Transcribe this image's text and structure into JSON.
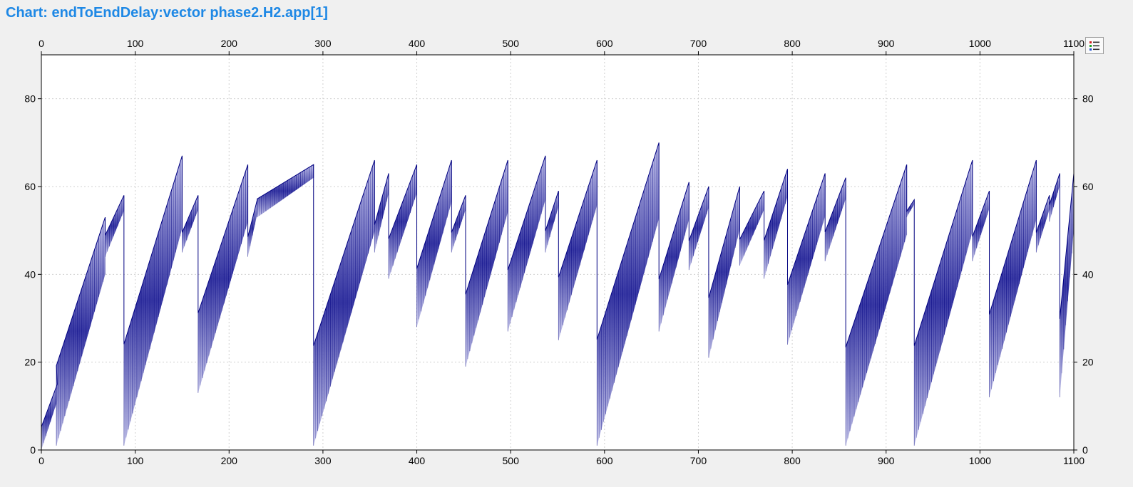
{
  "title": "Chart: endToEndDelay:vector phase2.H2.app[1]",
  "legend_button": {
    "icon": "legend-list-icon"
  },
  "colors": {
    "series": "#000080",
    "fill_light": "#e8e8f6",
    "grid": "#d0d0d0",
    "background": "#f0f0f0",
    "plot_background": "#ffffff",
    "title": "#1e88e5"
  },
  "chart_data": {
    "type": "line",
    "title": "Chart: endToEndDelay:vector phase2.H2.app[1]",
    "xlabel": "",
    "ylabel": "",
    "xlim": [
      0,
      1100
    ],
    "ylim": [
      0,
      90
    ],
    "x_ticks": [
      "0",
      "100",
      "200",
      "300",
      "400",
      "500",
      "600",
      "700",
      "800",
      "900",
      "1000",
      "1100"
    ],
    "y_ticks": [
      "0",
      "20",
      "40",
      "60",
      "80"
    ],
    "grid": true,
    "axes_mirrored": "top-and-right",
    "legend": "hidden",
    "series": [
      {
        "segments": [
          {
            "x_start": 0,
            "x_end": 17,
            "y_min": 0,
            "y_max": 15
          },
          {
            "x_start": 16,
            "x_end": 68,
            "y_min": 1,
            "y_max": 53
          },
          {
            "x_start": 68,
            "x_end": 88,
            "y_min": 44,
            "y_max": 58
          },
          {
            "x_start": 88,
            "x_end": 150,
            "y_min": 1,
            "y_max": 67
          },
          {
            "x_start": 150,
            "x_end": 167,
            "y_min": 45,
            "y_max": 58
          },
          {
            "x_start": 167,
            "x_end": 220,
            "y_min": 13,
            "y_max": 65
          },
          {
            "x_start": 220,
            "x_end": 230,
            "y_min": 44,
            "y_max": 57
          },
          {
            "x_start": 230,
            "x_end": 290,
            "y_min": 53,
            "y_max": 65
          },
          {
            "x_start": 290,
            "x_end": 355,
            "y_min": 1,
            "y_max": 66
          },
          {
            "x_start": 355,
            "x_end": 370,
            "y_min": 45,
            "y_max": 63
          },
          {
            "x_start": 370,
            "x_end": 400,
            "y_min": 39,
            "y_max": 65
          },
          {
            "x_start": 400,
            "x_end": 437,
            "y_min": 28,
            "y_max": 66
          },
          {
            "x_start": 437,
            "x_end": 452,
            "y_min": 45,
            "y_max": 58
          },
          {
            "x_start": 452,
            "x_end": 497,
            "y_min": 19,
            "y_max": 66
          },
          {
            "x_start": 497,
            "x_end": 537,
            "y_min": 27,
            "y_max": 67
          },
          {
            "x_start": 537,
            "x_end": 551,
            "y_min": 45,
            "y_max": 59
          },
          {
            "x_start": 551,
            "x_end": 592,
            "y_min": 25,
            "y_max": 66
          },
          {
            "x_start": 592,
            "x_end": 658,
            "y_min": 1,
            "y_max": 70
          },
          {
            "x_start": 658,
            "x_end": 690,
            "y_min": 27,
            "y_max": 61
          },
          {
            "x_start": 690,
            "x_end": 711,
            "y_min": 41,
            "y_max": 60
          },
          {
            "x_start": 711,
            "x_end": 744,
            "y_min": 21,
            "y_max": 60
          },
          {
            "x_start": 744,
            "x_end": 770,
            "y_min": 42,
            "y_max": 59
          },
          {
            "x_start": 770,
            "x_end": 795,
            "y_min": 39,
            "y_max": 64
          },
          {
            "x_start": 795,
            "x_end": 835,
            "y_min": 24,
            "y_max": 63
          },
          {
            "x_start": 835,
            "x_end": 857,
            "y_min": 43,
            "y_max": 62
          },
          {
            "x_start": 857,
            "x_end": 922,
            "y_min": 1,
            "y_max": 65
          },
          {
            "x_start": 922,
            "x_end": 930,
            "y_min": 53,
            "y_max": 57
          },
          {
            "x_start": 930,
            "x_end": 992,
            "y_min": 1,
            "y_max": 66
          },
          {
            "x_start": 992,
            "x_end": 1010,
            "y_min": 43,
            "y_max": 59
          },
          {
            "x_start": 1010,
            "x_end": 1060,
            "y_min": 12,
            "y_max": 66
          },
          {
            "x_start": 1060,
            "x_end": 1074,
            "y_min": 45,
            "y_max": 58
          },
          {
            "x_start": 1074,
            "x_end": 1085,
            "y_min": 52,
            "y_max": 63
          },
          {
            "x_start": 1085,
            "x_end": 1100,
            "y_min": 12,
            "y_max": 63
          }
        ]
      }
    ]
  }
}
